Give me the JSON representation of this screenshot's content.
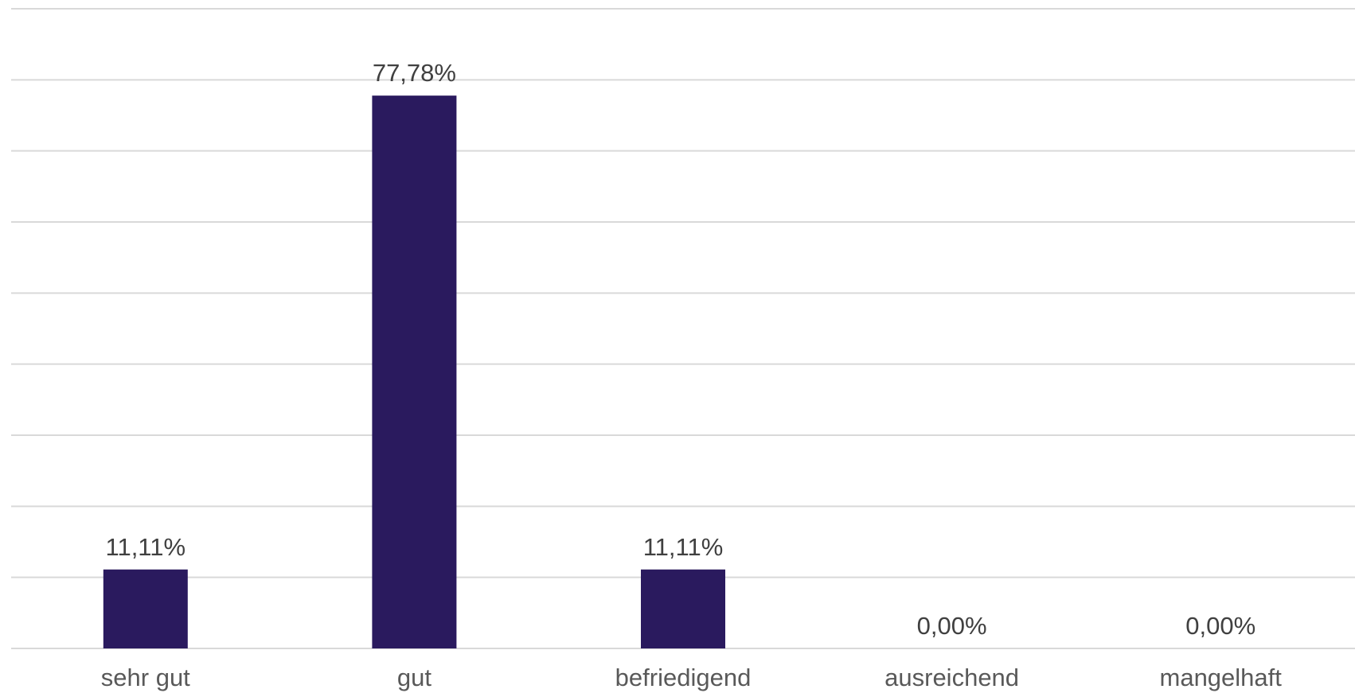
{
  "colors": {
    "bar": "#2a1a5e",
    "grid": "#d9d9d9",
    "data_label": "#404040",
    "category_label": "#595959"
  },
  "chart_data": {
    "type": "bar",
    "categories": [
      "sehr gut",
      "gut",
      "befriedigend",
      "ausreichend",
      "mangelhaft"
    ],
    "values": [
      11.11,
      77.78,
      11.11,
      0.0,
      0.0
    ],
    "data_labels": [
      "11,11%",
      "77,78%",
      "11,11%",
      "0,00%",
      "0,00%"
    ],
    "title": "",
    "xlabel": "",
    "ylabel": "",
    "ylim": [
      0,
      90
    ],
    "y_gridline_step": 10,
    "grid": true,
    "legend": "none"
  }
}
